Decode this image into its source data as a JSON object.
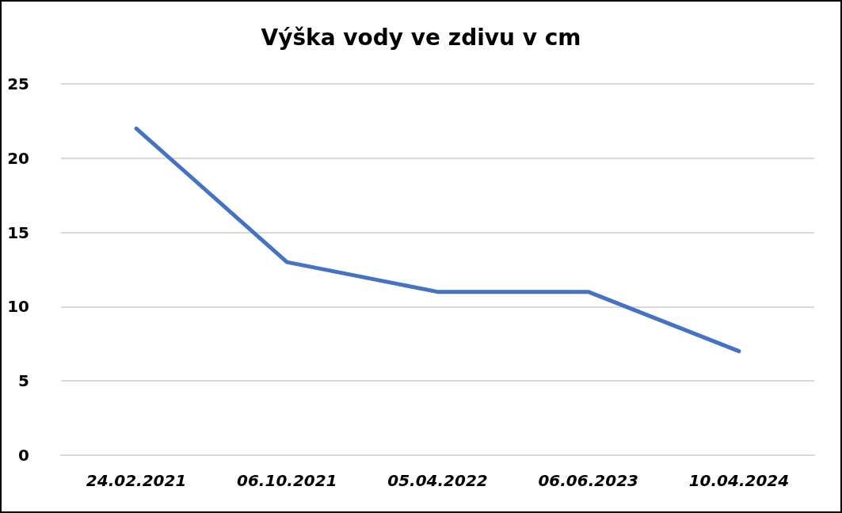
{
  "chart_data": {
    "type": "line",
    "title": "Výška vody ve zdivu v cm",
    "categories": [
      "24.02.2021",
      "06.10.2021",
      "05.04.2022",
      "06.06.2023",
      "10.04.2024"
    ],
    "series": [
      {
        "color": "#4472c4",
        "values": [
          22,
          13,
          11,
          11,
          7
        ]
      }
    ],
    "ylim": [
      0,
      25
    ],
    "yticks": [
      0,
      5,
      10,
      15,
      20,
      25
    ],
    "grid": "y",
    "marker": "none",
    "line_style": "solid"
  }
}
